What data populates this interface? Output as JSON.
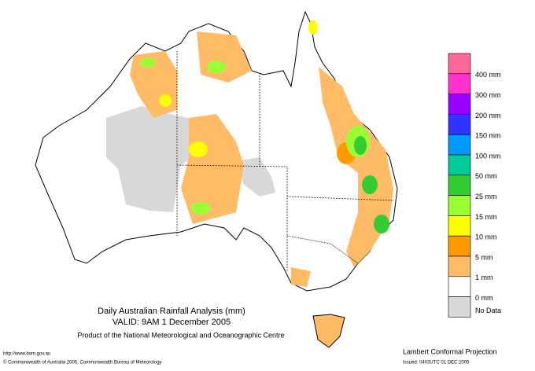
{
  "map": {
    "title": "Daily Australian Rainfall Analysis (mm)",
    "valid": "VALID: 9AM  1 December 2005",
    "product": "Product of the National Meteorological and Oceanographic Centre",
    "url": "http://www.bom.gov.au",
    "copyright": "© Commonwealth of Australia 2005, Commonwealth Bureau of Meteorology",
    "projection": "Lambert Conformal Projection",
    "issued": "Issued: 0403UTC 01 DEC 2005"
  },
  "legend": {
    "colors": [
      "#ff6699",
      "#ff33cc",
      "#9900ff",
      "#3333ff",
      "#0099ff",
      "#00cc99",
      "#33cc33",
      "#99ff33",
      "#ffff00",
      "#ff9900",
      "#ffbb66",
      "#ffffff",
      "#d8d8d8"
    ],
    "labels": [
      "400 mm",
      "300 mm",
      "200 mm",
      "150 mm",
      "100 mm",
      "50 mm",
      "25 mm",
      "15 mm",
      "10 mm",
      "5 mm",
      "1 mm",
      "0 mm"
    ],
    "no_data": "No Data"
  }
}
